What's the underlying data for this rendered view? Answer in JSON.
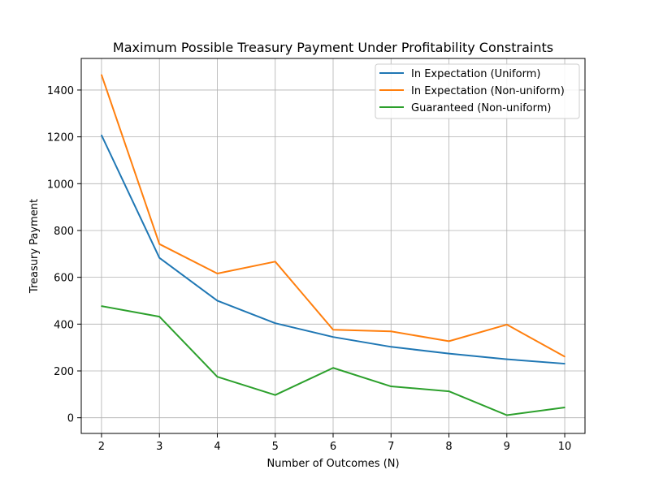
{
  "chart_data": {
    "type": "line",
    "title": "Maximum Possible Treasury Payment Under Profitability Constraints",
    "xlabel": "Number of Outcomes (N)",
    "ylabel": "Treasury Payment",
    "x": [
      2,
      3,
      4,
      5,
      6,
      7,
      8,
      9,
      10
    ],
    "xlim": [
      1.65,
      10.35
    ],
    "ylim": [
      -67,
      1535
    ],
    "xticks": [
      "2",
      "3",
      "4",
      "5",
      "6",
      "7",
      "8",
      "9",
      "10"
    ],
    "yticks": [
      "0",
      "200",
      "400",
      "600",
      "800",
      "1000",
      "1200",
      "1400"
    ],
    "grid": true,
    "legend_position": "top-right",
    "series": [
      {
        "name": "In Expectation (Uniform)",
        "color": "#1f77b4",
        "values": [
          1207,
          683,
          500,
          404,
          345,
          303,
          274,
          250,
          231
        ]
      },
      {
        "name": "In Expectation (Non-uniform)",
        "color": "#ff7f0e",
        "values": [
          1465,
          742,
          616,
          667,
          376,
          369,
          327,
          398,
          261
        ]
      },
      {
        "name": "Guaranteed (Non-uniform)",
        "color": "#2ca02c",
        "values": [
          477,
          432,
          175,
          97,
          213,
          134,
          113,
          11,
          44
        ]
      }
    ]
  }
}
